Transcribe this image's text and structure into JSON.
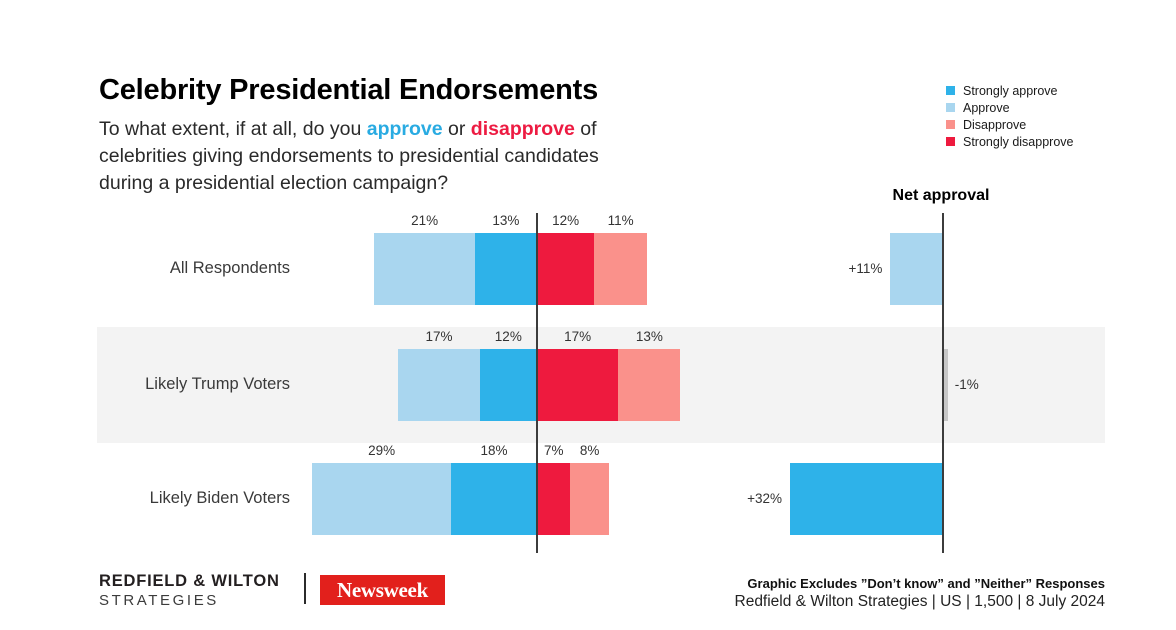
{
  "header": {
    "title": "Celebrity Presidential Endorsements",
    "subtitle": {
      "line1_prefix": "To what extent, if at all, do you ",
      "approve_word": "approve",
      "line1_mid": " or ",
      "disapprove_word": "disapprove",
      "line1_suffix": " of",
      "line2": "celebrities giving endorsements to presidential candidates",
      "line3": "during a presidential election campaign?"
    }
  },
  "palette": {
    "strongly_approve": "#2EB2E9",
    "approve": "#A9D6EF",
    "disapprove": "#FA918B",
    "strongly_disapprove": "#EE1A3E",
    "net_neutral_gray": "#C7C7C7",
    "approve_text": "#29ABE2",
    "disapprove_text": "#ED1B42",
    "newsweek_red": "#E2201C"
  },
  "legend": [
    {
      "label": "Strongly approve",
      "color": "#2EB2E9"
    },
    {
      "label": "Approve",
      "color": "#A9D6EF"
    },
    {
      "label": "Disapprove",
      "color": "#FA918B"
    },
    {
      "label": "Strongly disapprove",
      "color": "#EE1A3E"
    }
  ],
  "net_header": "Net approval",
  "chart_data": {
    "type": "bar",
    "orientation": "horizontal-diverging",
    "unit": "%",
    "series_order": [
      "Approve",
      "Strongly approve",
      "Strongly disapprove",
      "Disapprove"
    ],
    "legend_position": "top-right",
    "rows": [
      {
        "label": "All Respondents",
        "approve": 21,
        "strongly_approve": 13,
        "strongly_disapprove": 12,
        "disapprove": 11,
        "net_value": 11,
        "net_label": "+11%",
        "net_color": "#A9D6EF",
        "band": false
      },
      {
        "label": "Likely Trump Voters",
        "approve": 17,
        "strongly_approve": 12,
        "strongly_disapprove": 17,
        "disapprove": 13,
        "net_value": -1,
        "net_label": "-1%",
        "net_color": "#C7C7C7",
        "band": true
      },
      {
        "label": "Likely Biden Voters",
        "approve": 29,
        "strongly_approve": 18,
        "strongly_disapprove": 7,
        "disapprove": 8,
        "net_value": 32,
        "net_label": "+32%",
        "net_color": "#2EB2E9",
        "band": false
      }
    ]
  },
  "footer": {
    "brand_line1": "REDFIELD & WILTON",
    "brand_line2": "STRATEGIES",
    "newsweek_logo": "Newsweek",
    "note_bold": "Graphic Excludes ”Don’t know” and ”Neither” Responses",
    "note_source": "Redfield & Wilton Strategies | US | 1,500 | 8 July 2024"
  }
}
